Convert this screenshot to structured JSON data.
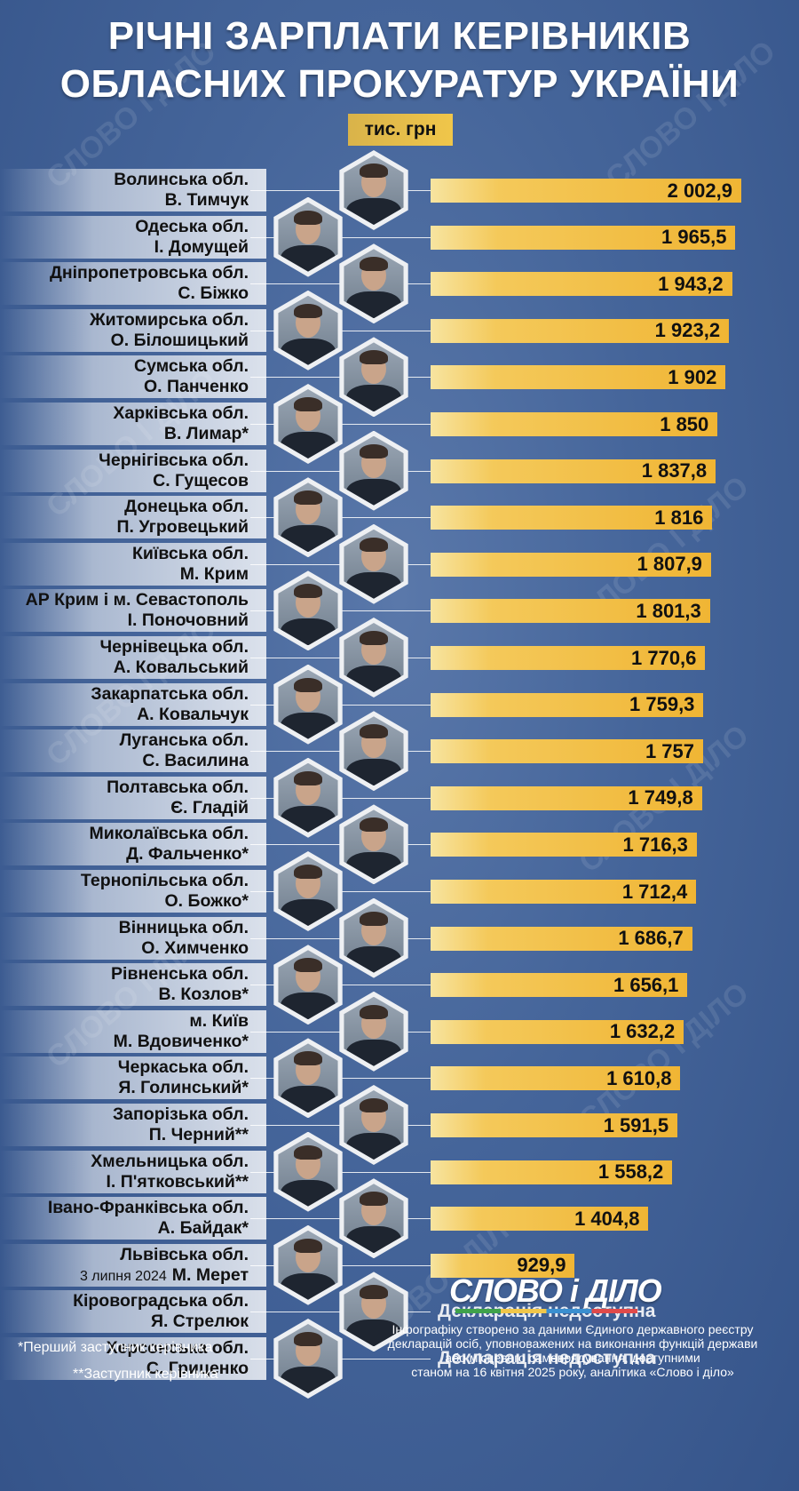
{
  "title_line1": "РІЧНІ ЗАРПЛАТИ КЕРІВНИКІВ",
  "title_line2": "ОБЛАСНИХ ПРОКУРАТУР УКРАЇНИ",
  "unit_label": "тис. грн",
  "watermark": "СЛОВО І ДІЛО",
  "legend": {
    "first_deputy": "*Перший заступник керівника",
    "deputy": "**Заступник керівника"
  },
  "logo_text": "СЛОВО і ДІЛО",
  "source_lines": [
    "Інфографіку створено за даними Єдиного державного реєстру",
    "декларацій осіб, уповноважених на виконання функцій держави",
    "або місцевого самоврядування, доступними",
    "станом на 16 квітня 2025 року, аналітика «Слово і діло»"
  ],
  "colors": {
    "background": "#45659a",
    "bar": "#f0b534",
    "unit_badge": "#f0c64a"
  },
  "chart_data": {
    "type": "bar",
    "orientation": "horizontal",
    "title": "РІЧНІ ЗАРПЛАТИ КЕРІВНИКІВ ОБЛАСНИХ ПРОКУРАТУР УКРАЇНИ",
    "unit": "тис. грн",
    "xlim": [
      0,
      2002.9
    ],
    "items": [
      {
        "region": "Волинська обл.",
        "person": "В. Тимчук",
        "value": 2002.9,
        "label": "2 002,9"
      },
      {
        "region": "Одеська обл.",
        "person": "І. Домущей",
        "value": 1965.5,
        "label": "1 965,5"
      },
      {
        "region": "Дніпропетровська обл.",
        "person": "С. Біжко",
        "value": 1943.2,
        "label": "1 943,2"
      },
      {
        "region": "Житомирська обл.",
        "person": "О. Білошицький",
        "value": 1923.2,
        "label": "1 923,2"
      },
      {
        "region": "Сумська обл.",
        "person": "О. Панченко",
        "value": 1902,
        "label": "1 902"
      },
      {
        "region": "Харківська обл.",
        "person": "В. Лимар*",
        "value": 1850,
        "label": "1 850"
      },
      {
        "region": "Чернігівська обл.",
        "person": "С. Гущесов",
        "value": 1837.8,
        "label": "1 837,8"
      },
      {
        "region": "Донецька обл.",
        "person": "П. Угровецький",
        "value": 1816,
        "label": "1 816"
      },
      {
        "region": "Київська обл.",
        "person": "М. Крим",
        "value": 1807.9,
        "label": "1 807,9"
      },
      {
        "region": "АР Крим і м. Севастополь",
        "person": "І. Поночовний",
        "value": 1801.3,
        "label": "1 801,3"
      },
      {
        "region": "Чернівецька обл.",
        "person": "А. Ковальський",
        "value": 1770.6,
        "label": "1 770,6"
      },
      {
        "region": "Закарпатська обл.",
        "person": "А. Ковальчук",
        "value": 1759.3,
        "label": "1 759,3"
      },
      {
        "region": "Луганська обл.",
        "person": "С. Василина",
        "value": 1757,
        "label": "1 757"
      },
      {
        "region": "Полтавська обл.",
        "person": "Є. Гладій",
        "value": 1749.8,
        "label": "1 749,8"
      },
      {
        "region": "Миколаївська обл.",
        "person": "Д. Фальченко*",
        "value": 1716.3,
        "label": "1 716,3"
      },
      {
        "region": "Тернопільська обл.",
        "person": "О. Божко*",
        "value": 1712.4,
        "label": "1 712,4"
      },
      {
        "region": "Вінницька обл.",
        "person": "О. Химченко",
        "value": 1686.7,
        "label": "1 686,7"
      },
      {
        "region": "Рівненська обл.",
        "person": "В. Козлов*",
        "value": 1656.1,
        "label": "1 656,1"
      },
      {
        "region": "м. Київ",
        "person": "М. Вдовиченко*",
        "value": 1632.2,
        "label": "1 632,2"
      },
      {
        "region": "Черкаська обл.",
        "person": "Я. Голинський*",
        "value": 1610.8,
        "label": "1 610,8"
      },
      {
        "region": "Запорізька обл.",
        "person": "П. Черний**",
        "value": 1591.5,
        "label": "1 591,5"
      },
      {
        "region": "Хмельницька обл.",
        "person": "І. П'ятковський**",
        "value": 1558.2,
        "label": "1 558,2"
      },
      {
        "region": "Івано-Франківська обл.",
        "person": "А. Байдак*",
        "value": 1404.8,
        "label": "1 404,8"
      },
      {
        "region": "Львівська обл.",
        "person": "М. Мерет",
        "date_note": "3 липня 2024",
        "value": 929.9,
        "label": "929,9"
      },
      {
        "region": "Кіровоградська обл.",
        "person": "Я. Стрелюк",
        "value": null,
        "label": "Декларація недоступна"
      },
      {
        "region": "Херсонська обл.",
        "person": "С. Гриценко",
        "value": null,
        "label": "Декларація недоступна"
      }
    ]
  }
}
